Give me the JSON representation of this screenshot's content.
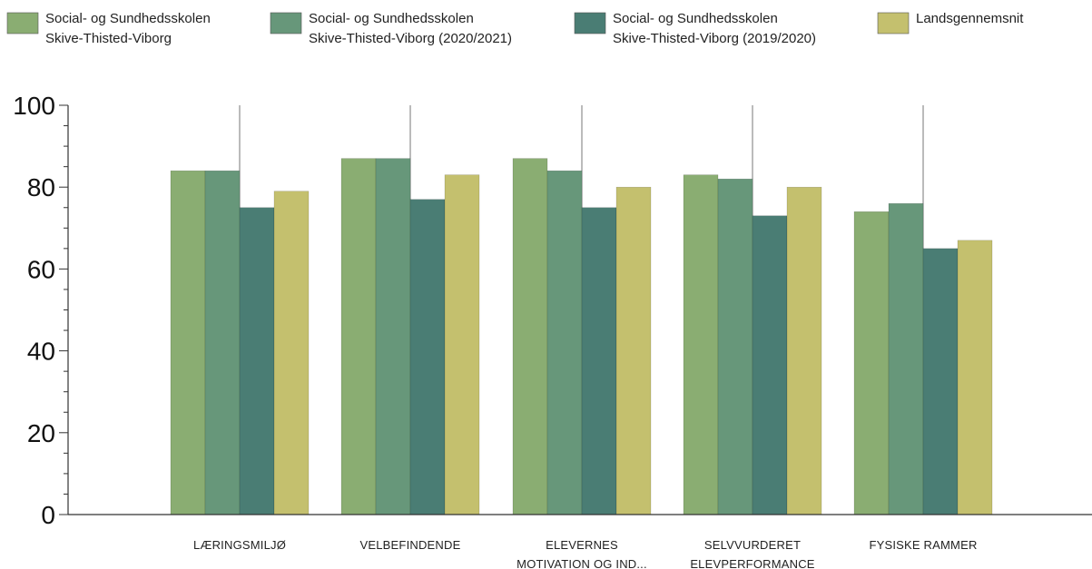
{
  "chart_data": {
    "type": "bar",
    "categories": [
      [
        "LÆRINGSMILJØ"
      ],
      [
        "VELBEFINDENDE"
      ],
      [
        "ELEVERNES",
        "MOTIVATION  OG IND..."
      ],
      [
        "SELVVURDERET",
        "ELEVPERFORMANCE"
      ],
      [
        "FYSISKE RAMMER"
      ]
    ],
    "series": [
      {
        "name": [
          "Social- og Sundhedsskolen",
          "Skive-Thisted-Viborg"
        ],
        "color": "#8aad72",
        "values": [
          84,
          87,
          87,
          83,
          74
        ]
      },
      {
        "name": [
          "Social- og Sundhedsskolen",
          "Skive-Thisted-Viborg (2020/2021)"
        ],
        "color": "#67977a",
        "values": [
          84,
          87,
          84,
          82,
          76
        ]
      },
      {
        "name": [
          "Social- og Sundhedsskolen",
          "Skive-Thisted-Viborg (2019/2020)"
        ],
        "color": "#4a7d74",
        "values": [
          75,
          77,
          75,
          73,
          65
        ]
      },
      {
        "name": [
          "Landsgennemsnit"
        ],
        "color": "#c4c06e",
        "values": [
          79,
          83,
          80,
          80,
          67
        ]
      }
    ],
    "ylim": [
      0,
      100
    ],
    "yticks": [
      0,
      20,
      40,
      60,
      80,
      100
    ],
    "xlabel": "",
    "ylabel": "",
    "title": "",
    "legend_position": "top",
    "grid": false
  }
}
